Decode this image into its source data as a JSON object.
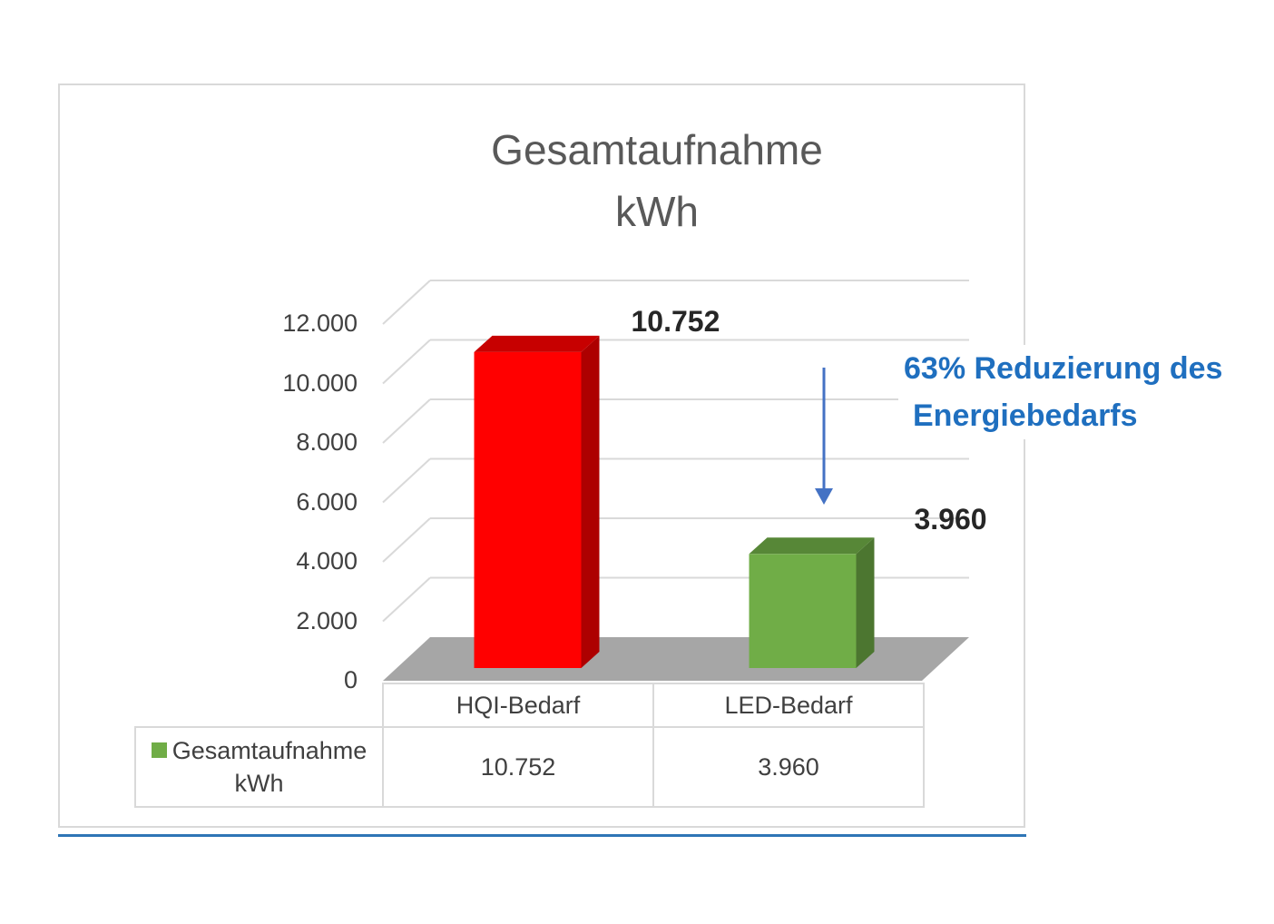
{
  "chart_data": {
    "type": "bar",
    "title": [
      "Gesamtaufnahme",
      "kWh"
    ],
    "categories": [
      "HQI-Bedarf",
      "LED-Bedarf"
    ],
    "series": [
      {
        "name": "Gesamtaufnahme kWh",
        "values": [
          10752,
          3960
        ],
        "value_labels": [
          "10.752",
          "3.960"
        ],
        "colors": [
          "#ff0000",
          "#70ad47"
        ]
      }
    ],
    "ylim": [
      0,
      12000
    ],
    "yticks": [
      0,
      2000,
      4000,
      6000,
      8000,
      10000,
      12000
    ],
    "ytick_labels": [
      "0",
      "2.000",
      "4.000",
      "6.000",
      "8.000",
      "10.000",
      "12.000"
    ],
    "grid": true,
    "style": "3d-column",
    "data_table": {
      "legend_label_lines": [
        "Gesamtaufnahme",
        "kWh"
      ],
      "cells": [
        "10.752",
        "3.960"
      ]
    },
    "annotation": {
      "lines": [
        "63% Reduzierung des",
        "Energiebedarfs"
      ],
      "color": "#1f6fbf"
    }
  }
}
